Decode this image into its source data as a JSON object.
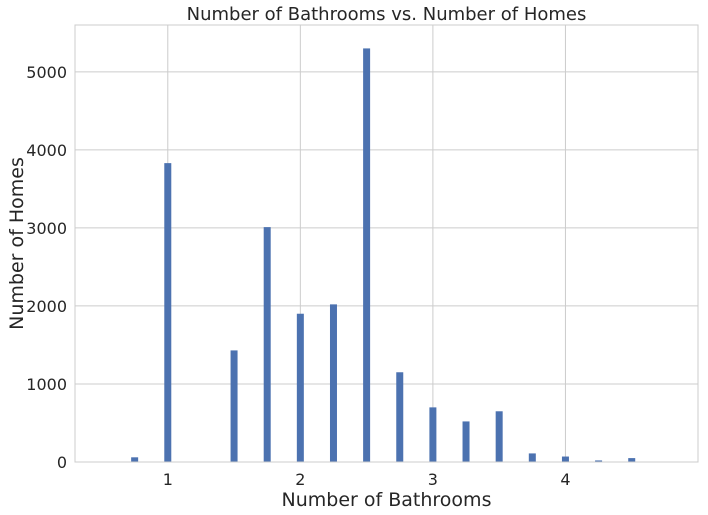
{
  "chart_data": {
    "type": "bar",
    "title": "Number of Bathrooms vs. Number of Homes",
    "xlabel": "Number of Bathrooms",
    "ylabel": "Number of Homes",
    "xlim": [
      0.3,
      5.0
    ],
    "ylim": [
      0,
      5600
    ],
    "xticks": [
      1,
      2,
      3,
      4
    ],
    "xtick_labels": [
      "1",
      "2",
      "3",
      "4"
    ],
    "yticks": [
      0,
      1000,
      2000,
      3000,
      4000,
      5000
    ],
    "ytick_labels": [
      "0",
      "1000",
      "2000",
      "3000",
      "4000",
      "5000"
    ],
    "grid": true,
    "bar_color": "#4c72b0",
    "x": [
      0.75,
      1.0,
      1.5,
      1.75,
      2.0,
      2.25,
      2.5,
      2.75,
      3.0,
      3.25,
      3.5,
      3.75,
      4.0,
      4.25,
      4.5
    ],
    "values": [
      60,
      3830,
      1430,
      3010,
      1900,
      2020,
      5300,
      1150,
      700,
      520,
      650,
      110,
      70,
      20,
      50
    ]
  }
}
